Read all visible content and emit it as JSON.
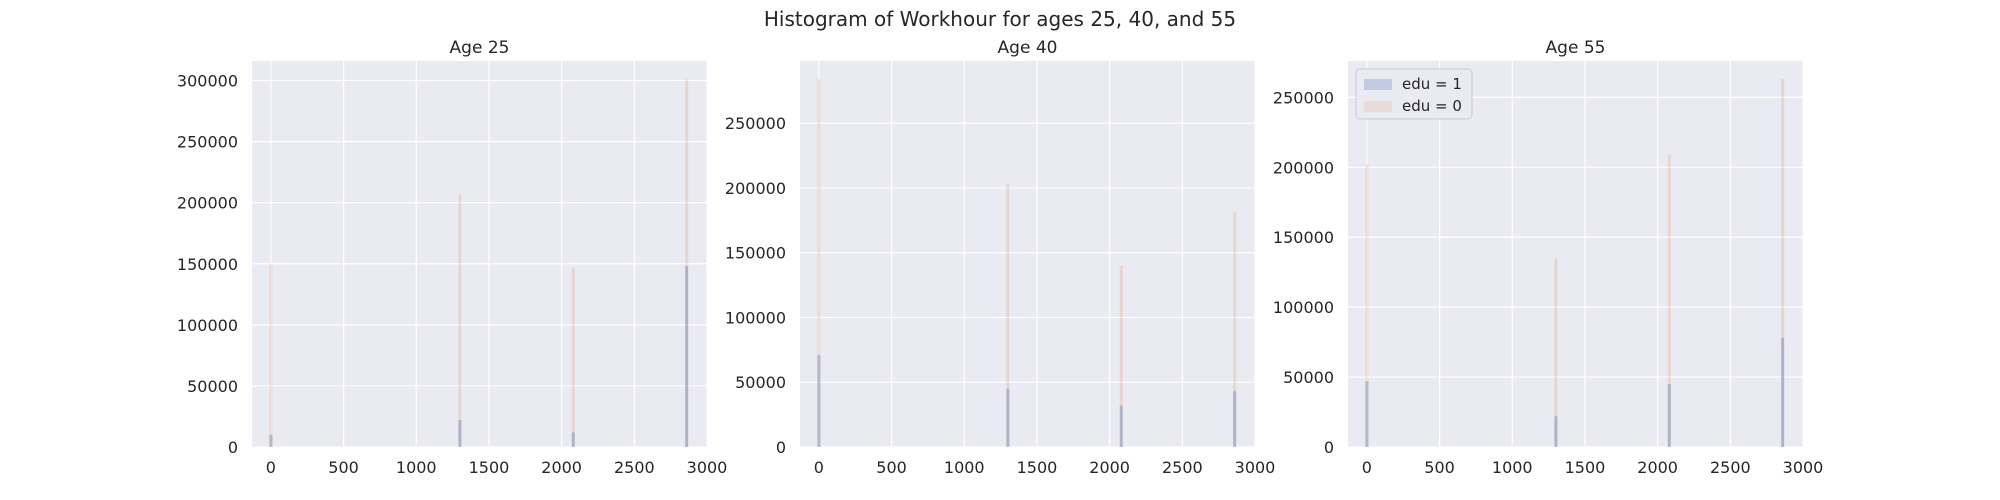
{
  "figure": {
    "suptitle": "Histogram of Workhour for ages 25, 40, and 55"
  },
  "colors": {
    "background": "#eaeaf2",
    "grid": "#ffffff",
    "edu1": "#4c72b0",
    "edu0": "#dd8452",
    "text": "#262626"
  },
  "legend": {
    "placement": "upper-left of third panel",
    "entries": [
      "edu = 1",
      "edu = 0"
    ]
  },
  "chart_data": [
    {
      "type": "bar",
      "title": "Age 25",
      "xlabel": "",
      "ylabel": "",
      "xlim": [
        -130,
        3000
      ],
      "ylim": [
        0,
        316000
      ],
      "xticks": [
        0,
        500,
        1000,
        1500,
        2000,
        2500,
        3000
      ],
      "yticks": [
        0,
        50000,
        100000,
        150000,
        200000,
        250000,
        300000
      ],
      "grid": true,
      "legend": false,
      "series": [
        {
          "name": "edu = 1",
          "x": [
            0,
            1300,
            2080,
            2860
          ],
          "values": [
            10000,
            22000,
            12000,
            148000
          ]
        },
        {
          "name": "edu = 0",
          "x": [
            0,
            1300,
            2080,
            2860
          ],
          "values": [
            150000,
            207000,
            147000,
            301000
          ]
        }
      ]
    },
    {
      "type": "bar",
      "title": "Age 40",
      "xlabel": "",
      "ylabel": "",
      "xlim": [
        -130,
        3000
      ],
      "ylim": [
        0,
        298000
      ],
      "xticks": [
        0,
        500,
        1000,
        1500,
        2000,
        2500,
        3000
      ],
      "yticks": [
        0,
        50000,
        100000,
        150000,
        200000,
        250000
      ],
      "grid": true,
      "legend": false,
      "series": [
        {
          "name": "edu = 1",
          "x": [
            0,
            1300,
            2080,
            2860
          ],
          "values": [
            71000,
            45000,
            32000,
            43000
          ]
        },
        {
          "name": "edu = 0",
          "x": [
            0,
            1300,
            2080,
            2860
          ],
          "values": [
            284000,
            203000,
            140000,
            181000
          ]
        }
      ]
    },
    {
      "type": "bar",
      "title": "Age 55",
      "xlabel": "",
      "ylabel": "",
      "xlim": [
        -130,
        3000
      ],
      "ylim": [
        0,
        276000
      ],
      "xticks": [
        0,
        500,
        1000,
        1500,
        2000,
        2500,
        3000
      ],
      "yticks": [
        0,
        50000,
        100000,
        150000,
        200000,
        250000
      ],
      "grid": true,
      "legend": true,
      "series": [
        {
          "name": "edu = 1",
          "x": [
            0,
            1300,
            2080,
            2860
          ],
          "values": [
            47000,
            22000,
            45000,
            78000
          ]
        },
        {
          "name": "edu = 0",
          "x": [
            0,
            1300,
            2080,
            2860
          ],
          "values": [
            202000,
            135000,
            209000,
            263000
          ]
        }
      ]
    }
  ]
}
